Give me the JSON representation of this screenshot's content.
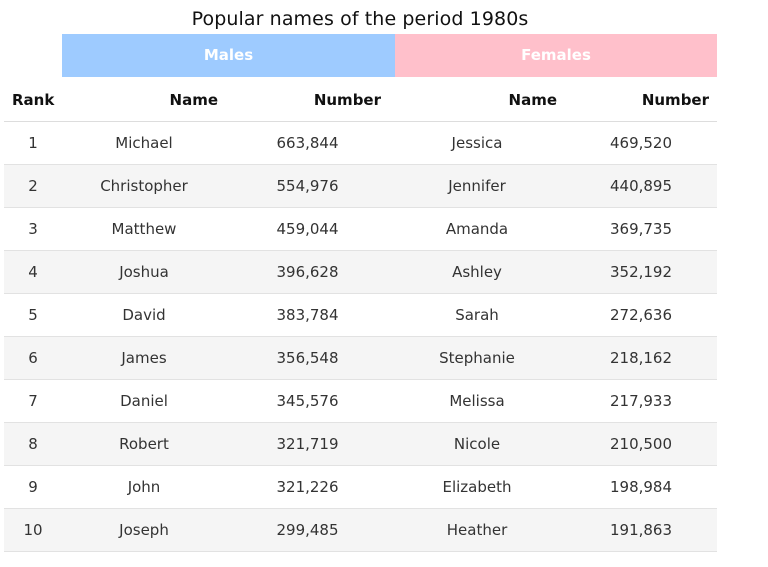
{
  "title": "Popular names of the period 1980s",
  "groups": {
    "males": "Males",
    "females": "Females"
  },
  "columns": {
    "rank": "Rank",
    "male_name": "Name",
    "male_number": "Number",
    "female_name": "Name",
    "female_number": "Number"
  },
  "colors": {
    "males_header": "#9ecbff",
    "females_header": "#ffc0cb",
    "stripe": "#f5f5f5"
  },
  "rows": [
    {
      "rank": "1",
      "male_name": "Michael",
      "male_number": "663,844",
      "female_name": "Jessica",
      "female_number": "469,520"
    },
    {
      "rank": "2",
      "male_name": "Christopher",
      "male_number": "554,976",
      "female_name": "Jennifer",
      "female_number": "440,895"
    },
    {
      "rank": "3",
      "male_name": "Matthew",
      "male_number": "459,044",
      "female_name": "Amanda",
      "female_number": "369,735"
    },
    {
      "rank": "4",
      "male_name": "Joshua",
      "male_number": "396,628",
      "female_name": "Ashley",
      "female_number": "352,192"
    },
    {
      "rank": "5",
      "male_name": "David",
      "male_number": "383,784",
      "female_name": "Sarah",
      "female_number": "272,636"
    },
    {
      "rank": "6",
      "male_name": "James",
      "male_number": "356,548",
      "female_name": "Stephanie",
      "female_number": "218,162"
    },
    {
      "rank": "7",
      "male_name": "Daniel",
      "male_number": "345,576",
      "female_name": "Melissa",
      "female_number": "217,933"
    },
    {
      "rank": "8",
      "male_name": "Robert",
      "male_number": "321,719",
      "female_name": "Nicole",
      "female_number": "210,500"
    },
    {
      "rank": "9",
      "male_name": "John",
      "male_number": "321,226",
      "female_name": "Elizabeth",
      "female_number": "198,984"
    },
    {
      "rank": "10",
      "male_name": "Joseph",
      "male_number": "299,485",
      "female_name": "Heather",
      "female_number": "191,863"
    }
  ]
}
